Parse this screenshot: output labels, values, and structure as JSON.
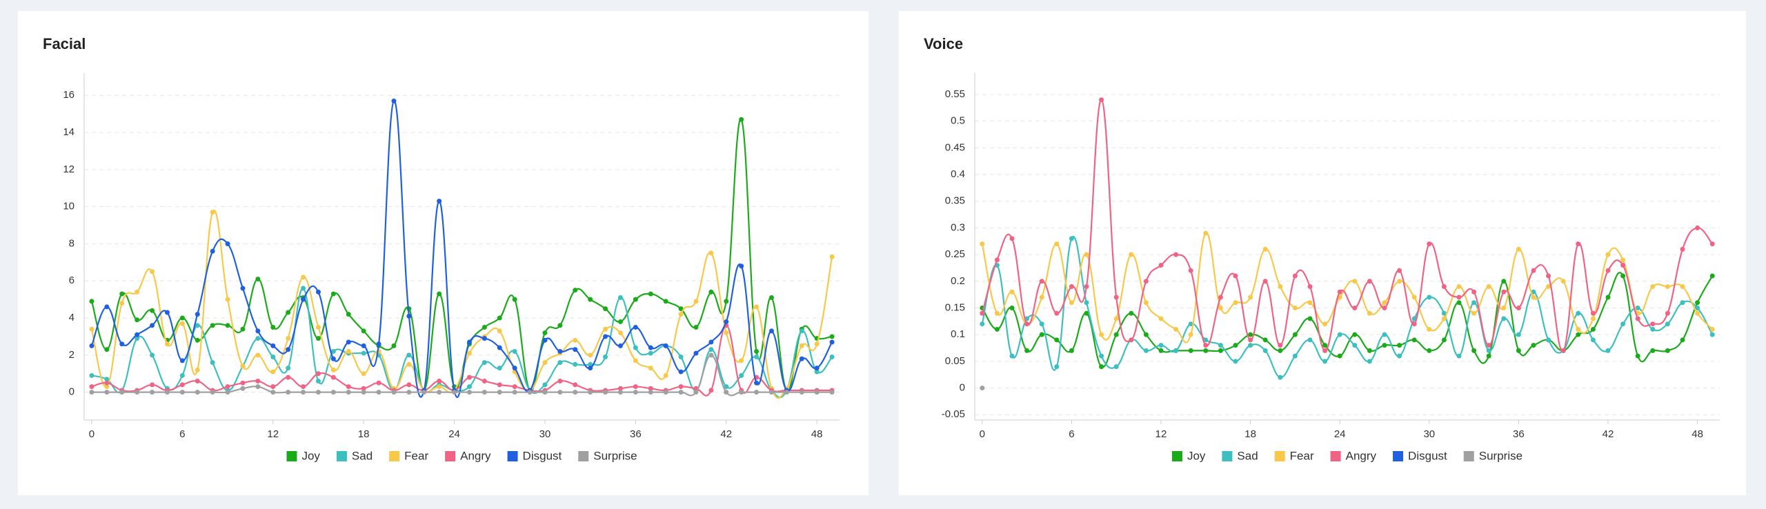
{
  "chart_data": [
    {
      "type": "line",
      "title": "Facial",
      "grid": true,
      "x": [
        0,
        1,
        2,
        3,
        4,
        5,
        6,
        7,
        8,
        9,
        10,
        11,
        12,
        13,
        14,
        15,
        16,
        17,
        18,
        19,
        20,
        21,
        22,
        23,
        24,
        25,
        26,
        27,
        28,
        29,
        30,
        31,
        32,
        33,
        34,
        35,
        36,
        37,
        38,
        39,
        40,
        41,
        42,
        43,
        44,
        45,
        46,
        47,
        48,
        49
      ],
      "xlim": [
        -0.5,
        49.5
      ],
      "xticks": [
        0,
        6,
        12,
        18,
        24,
        30,
        36,
        42,
        48
      ],
      "ylim": [
        -1.5,
        17.2
      ],
      "yticks": [
        0,
        2,
        4,
        6,
        8,
        10,
        12,
        14,
        16
      ],
      "series": [
        {
          "name": "Joy",
          "color": "#1aaa1a",
          "values": [
            4.9,
            2.3,
            5.3,
            3.9,
            4.4,
            2.8,
            4.0,
            2.8,
            3.6,
            3.6,
            3.4,
            6.1,
            3.5,
            4.3,
            5.1,
            2.9,
            5.3,
            4.2,
            3.3,
            2.5,
            2.5,
            4.5,
            0.1,
            5.3,
            0.3,
            2.6,
            3.5,
            4.0,
            5.0,
            0.1,
            3.2,
            3.6,
            5.5,
            5.0,
            4.5,
            3.8,
            5.0,
            5.3,
            4.9,
            4.5,
            3.5,
            5.4,
            4.9,
            14.7,
            2.2,
            5.1,
            0.1,
            3.4,
            2.9,
            3.0
          ]
        },
        {
          "name": "Sad",
          "color": "#3dbfbf",
          "values": [
            0.9,
            0.7,
            0.1,
            2.9,
            2.0,
            0.2,
            0.9,
            3.6,
            1.6,
            0.1,
            1.4,
            2.9,
            1.9,
            1.3,
            5.6,
            0.6,
            2.2,
            2.1,
            2.1,
            2.0,
            0.1,
            2.0,
            0.1,
            0.4,
            0.1,
            0.3,
            1.6,
            1.3,
            2.2,
            0.1,
            0.4,
            1.6,
            1.5,
            1.5,
            1.9,
            5.1,
            2.4,
            2.1,
            2.5,
            1.9,
            0.1,
            2.3,
            0.3,
            0.9,
            1.9,
            0.1,
            0.1,
            3.3,
            1.1,
            1.9
          ]
        },
        {
          "name": "Fear",
          "color": "#f7c84a",
          "values": [
            3.4,
            0.3,
            4.8,
            5.4,
            6.5,
            2.6,
            3.7,
            1.2,
            9.7,
            5.0,
            1.4,
            2.0,
            1.1,
            2.9,
            6.2,
            3.5,
            1.2,
            2.2,
            1.0,
            2.2,
            0.2,
            1.5,
            0.1,
            0.3,
            0.1,
            2.1,
            3.0,
            3.3,
            1.1,
            0.1,
            1.6,
            2.1,
            2.8,
            2.0,
            3.4,
            3.2,
            1.7,
            1.3,
            0.9,
            4.2,
            4.9,
            7.5,
            3.2,
            1.7,
            4.6,
            0.2,
            0.2,
            2.5,
            2.6,
            7.3
          ]
        },
        {
          "name": "Angry",
          "color": "#f06384",
          "values": [
            0.3,
            0.5,
            0.1,
            0.1,
            0.4,
            0.1,
            0.4,
            0.6,
            0.1,
            0.3,
            0.5,
            0.6,
            0.3,
            0.8,
            0.3,
            1.0,
            0.8,
            0.3,
            0.2,
            0.5,
            0.1,
            0.4,
            0.1,
            0.6,
            0.1,
            0.8,
            0.6,
            0.4,
            0.3,
            0.1,
            0.1,
            0.6,
            0.4,
            0.1,
            0.1,
            0.2,
            0.3,
            0.2,
            0.1,
            0.3,
            0.2,
            0.1,
            3.6,
            0.1,
            0.8,
            0.1,
            0.1,
            0.1,
            0.1,
            0.1
          ]
        },
        {
          "name": "Disgust",
          "color": "#1f5fe0",
          "values": [
            2.5,
            4.6,
            2.6,
            3.1,
            3.6,
            4.3,
            1.7,
            4.2,
            7.6,
            8.0,
            5.6,
            3.3,
            2.5,
            2.3,
            5.0,
            5.4,
            1.8,
            2.7,
            2.5,
            2.6,
            15.7,
            4.1,
            0.1,
            10.3,
            0.1,
            2.7,
            2.9,
            2.4,
            1.3,
            0.1,
            2.8,
            2.2,
            2.3,
            1.3,
            3.0,
            2.5,
            3.5,
            2.4,
            2.5,
            1.1,
            2.1,
            2.7,
            3.8,
            6.8,
            0.5,
            3.3,
            0.1,
            1.8,
            1.3,
            2.7
          ]
        },
        {
          "name": "Surprise",
          "color": "#a0a0a0",
          "values": [
            0,
            0,
            0,
            0,
            0,
            0,
            0,
            0,
            0,
            0,
            0.2,
            0.3,
            0,
            0,
            0,
            0,
            0,
            0,
            0,
            0,
            0,
            0,
            0,
            0,
            0,
            0,
            0,
            0,
            0,
            0,
            0,
            0,
            0,
            0,
            0,
            0,
            0,
            0,
            0,
            0,
            0,
            2.0,
            0,
            0,
            0,
            0,
            0,
            0,
            0,
            0
          ]
        }
      ]
    },
    {
      "type": "line",
      "title": "Voice",
      "grid": true,
      "x": [
        0,
        1,
        2,
        3,
        4,
        5,
        6,
        7,
        8,
        9,
        10,
        11,
        12,
        13,
        14,
        15,
        16,
        17,
        18,
        19,
        20,
        21,
        22,
        23,
        24,
        25,
        26,
        27,
        28,
        29,
        30,
        31,
        32,
        33,
        34,
        35,
        36,
        37,
        38,
        39,
        40,
        41,
        42,
        43,
        44,
        45,
        46,
        47,
        48,
        49
      ],
      "xlim": [
        -0.5,
        49.5
      ],
      "xticks": [
        0,
        6,
        12,
        18,
        24,
        30,
        36,
        42,
        48
      ],
      "ylim": [
        -0.06,
        0.59
      ],
      "yticks": [
        -0.05,
        0,
        0.05,
        0.1,
        0.15,
        0.2,
        0.25,
        0.3,
        0.35,
        0.4,
        0.45,
        0.5,
        0.55
      ],
      "series": [
        {
          "name": "Joy",
          "color": "#1aaa1a",
          "values": [
            0.15,
            0.11,
            0.15,
            0.07,
            0.1,
            0.09,
            0.07,
            0.14,
            0.04,
            0.1,
            0.14,
            0.1,
            0.07,
            0.07,
            0.07,
            0.07,
            0.07,
            0.08,
            0.1,
            0.09,
            0.07,
            0.1,
            0.13,
            0.08,
            0.06,
            0.1,
            0.07,
            0.08,
            0.08,
            0.09,
            0.07,
            0.09,
            0.16,
            0.07,
            0.06,
            0.2,
            0.07,
            0.08,
            0.09,
            0.07,
            0.1,
            0.11,
            0.17,
            0.21,
            0.06,
            0.07,
            0.07,
            0.09,
            0.16,
            0.21
          ]
        },
        {
          "name": "Sad",
          "color": "#3dbfbf",
          "values": [
            0.12,
            0.23,
            0.06,
            0.13,
            0.12,
            0.04,
            0.28,
            0.16,
            0.06,
            0.04,
            0.09,
            0.07,
            0.08,
            0.07,
            0.12,
            0.09,
            0.08,
            0.05,
            0.08,
            0.07,
            0.02,
            0.06,
            0.09,
            0.05,
            0.1,
            0.08,
            0.05,
            0.1,
            0.06,
            0.13,
            0.17,
            0.14,
            0.06,
            0.16,
            0.07,
            0.13,
            0.1,
            0.18,
            0.09,
            0.07,
            0.14,
            0.09,
            0.07,
            0.12,
            0.15,
            0.11,
            0.12,
            0.16,
            0.15,
            0.1
          ]
        },
        {
          "name": "Fear",
          "color": "#f7c84a",
          "values": [
            0.27,
            0.14,
            0.18,
            0.12,
            0.17,
            0.27,
            0.16,
            0.25,
            0.1,
            0.13,
            0.25,
            0.16,
            0.13,
            0.11,
            0.1,
            0.29,
            0.15,
            0.16,
            0.17,
            0.26,
            0.19,
            0.15,
            0.16,
            0.12,
            0.17,
            0.2,
            0.14,
            0.16,
            0.2,
            0.17,
            0.11,
            0.13,
            0.19,
            0.14,
            0.19,
            0.15,
            0.26,
            0.17,
            0.19,
            0.2,
            0.11,
            0.13,
            0.25,
            0.24,
            0.14,
            0.19,
            0.19,
            0.19,
            0.14,
            0.11
          ]
        },
        {
          "name": "Angry",
          "color": "#f06384",
          "values": [
            0.14,
            0.24,
            0.28,
            0.12,
            0.2,
            0.14,
            0.19,
            0.19,
            0.54,
            0.17,
            0.09,
            0.2,
            0.23,
            0.25,
            0.22,
            0.08,
            0.17,
            0.21,
            0.09,
            0.2,
            0.08,
            0.21,
            0.19,
            0.07,
            0.18,
            0.15,
            0.2,
            0.15,
            0.22,
            0.12,
            0.27,
            0.19,
            0.17,
            0.18,
            0.08,
            0.18,
            0.15,
            0.22,
            0.21,
            0.07,
            0.27,
            0.14,
            0.22,
            0.23,
            0.13,
            0.12,
            0.14,
            0.26,
            0.3,
            0.27
          ]
        },
        {
          "name": "Disgust",
          "color": "#1f5fe0",
          "values": [
            null,
            null,
            null,
            null,
            null,
            null,
            null,
            null,
            null,
            null,
            null,
            null,
            null,
            null,
            null,
            null,
            null,
            null,
            null,
            null,
            null,
            null,
            null,
            null,
            null,
            null,
            null,
            null,
            null,
            null,
            null,
            null,
            null,
            null,
            null,
            null,
            null,
            null,
            null,
            null,
            null,
            null,
            null,
            null,
            null,
            null,
            null,
            null,
            null,
            null
          ]
        },
        {
          "name": "Surprise",
          "color": "#a0a0a0",
          "values": [
            0,
            null,
            null,
            null,
            null,
            null,
            null,
            null,
            null,
            null,
            null,
            null,
            null,
            null,
            null,
            null,
            null,
            null,
            null,
            null,
            null,
            null,
            null,
            null,
            null,
            null,
            null,
            null,
            null,
            null,
            null,
            null,
            null,
            null,
            null,
            null,
            null,
            null,
            null,
            null,
            null,
            null,
            null,
            null,
            null,
            null,
            null,
            null,
            null,
            null
          ]
        }
      ]
    }
  ]
}
